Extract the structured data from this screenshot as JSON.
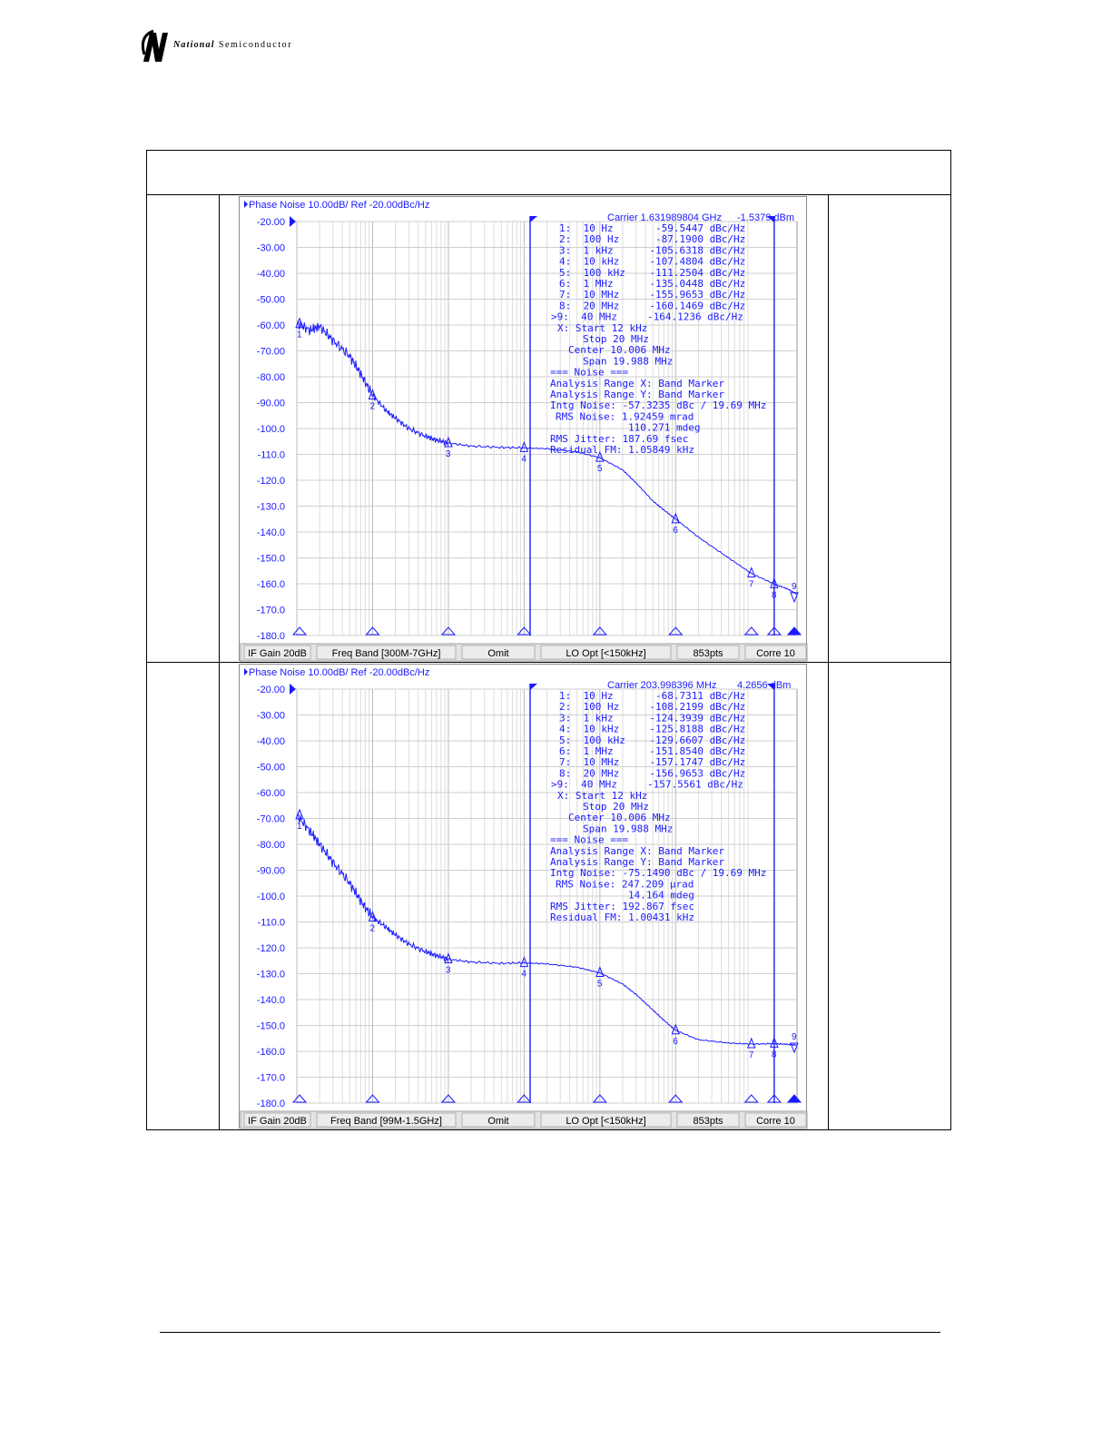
{
  "brand": {
    "name_bold": "National",
    "name_rest": "Semiconductor"
  },
  "chart_data": [
    {
      "type": "line",
      "title": "Phase Noise 10.00dB/ Ref -20.00dBc/Hz",
      "header_carrier": "Carrier 1.631989804 GHz",
      "header_power": "-1.5379 dBm",
      "x_scale": "log",
      "xlim": [
        10,
        40000000
      ],
      "ylim": [
        -180,
        -20
      ],
      "yticks": [
        "-20.00",
        "-30.00",
        "-40.00",
        "-50.00",
        "-60.00",
        "-70.00",
        "-80.00",
        "-90.00",
        "-100.0",
        "-110.0",
        "-120.0",
        "-130.0",
        "-140.0",
        "-150.0",
        "-160.0",
        "-170.0",
        "-180.0"
      ],
      "grid": true,
      "series": [
        {
          "x": [
            10,
            15,
            20,
            30,
            50,
            70,
            100,
            150,
            200,
            300,
            500,
            700,
            1000,
            2000,
            5000,
            10000,
            20000,
            50000,
            100000,
            200000,
            300000,
            500000,
            700000,
            1000000,
            2000000,
            5000000,
            10000000,
            20000000,
            30000000,
            40000000
          ],
          "y": [
            -59.5,
            -62,
            -60.5,
            -66,
            -72,
            -79,
            -87.2,
            -93,
            -96,
            -100,
            -103,
            -104.5,
            -105.6,
            -106.8,
            -107.3,
            -107.5,
            -107.8,
            -109,
            -111.3,
            -116,
            -121,
            -128,
            -131.5,
            -135,
            -142,
            -150,
            -156,
            -160.1,
            -162,
            -164.1
          ]
        }
      ],
      "markers": [
        {
          "id": "1",
          "x": 10,
          "y": -59.5447
        },
        {
          "id": "2",
          "x": 100,
          "y": -87.19
        },
        {
          "id": "3",
          "x": 1000,
          "y": -105.6318
        },
        {
          "id": "4",
          "x": 10000,
          "y": -107.4804
        },
        {
          "id": "5",
          "x": 100000,
          "y": -111.2504
        },
        {
          "id": "6",
          "x": 1000000,
          "y": -135.0448
        },
        {
          "id": "7",
          "x": 10000000,
          "y": -155.9653
        },
        {
          "id": "8",
          "x": 20000000,
          "y": -160.1469
        },
        {
          "id": "9",
          "x": 40000000,
          "y": -164.1236
        }
      ],
      "band_lines": [
        12000,
        20000000
      ],
      "marker_table": [
        "1:  10 Hz       -59.5447 dBc/Hz",
        "2:  100 Hz      -87.1900 dBc/Hz",
        "3:  1 kHz      -105.6318 dBc/Hz",
        "4:  10 kHz     -107.4804 dBc/Hz",
        "5:  100 kHz    -111.2504 dBc/Hz",
        "6:  1 MHz      -135.0448 dBc/Hz",
        "7:  10 MHz     -155.9653 dBc/Hz",
        "8:  20 MHz     -160.1469 dBc/Hz",
        ">9:  40 MHz     -164.1236 dBc/Hz",
        "X: Start 12 kHz",
        "Stop 20 MHz",
        "Center 10.006 MHz",
        "Span 19.988 MHz",
        "=== Noise ===",
        "Analysis Range X: Band Marker",
        "Analysis Range Y: Band Marker",
        "Intg Noise: -57.3235 dBc / 19.69 MHz",
        "RMS Noise: 1.92459 mrad",
        "110.271 mdeg",
        "RMS Jitter: 187.69 fsec",
        "Residual FM: 1.05849 kHz"
      ],
      "status_bar": [
        "IF Gain 20dB",
        "Freq Band [300M-7GHz]",
        "Omit",
        "LO Opt [<150kHz]",
        "853pts",
        "Corre 10"
      ]
    },
    {
      "type": "line",
      "title": "Phase Noise 10.00dB/ Ref -20.00dBc/Hz",
      "header_carrier": "Carrier 203.998396 MHz",
      "header_power": "4.2656 dBm",
      "x_scale": "log",
      "xlim": [
        10,
        40000000
      ],
      "ylim": [
        -180,
        -20
      ],
      "yticks": [
        "-20.00",
        "-30.00",
        "-40.00",
        "-50.00",
        "-60.00",
        "-70.00",
        "-80.00",
        "-90.00",
        "-100.0",
        "-110.0",
        "-120.0",
        "-130.0",
        "-140.0",
        "-150.0",
        "-160.0",
        "-170.0",
        "-180.0"
      ],
      "grid": true,
      "series": [
        {
          "x": [
            10,
            15,
            20,
            30,
            50,
            70,
            100,
            150,
            200,
            300,
            500,
            700,
            1000,
            2000,
            5000,
            10000,
            20000,
            50000,
            100000,
            200000,
            300000,
            500000,
            700000,
            1000000,
            2000000,
            5000000,
            10000000,
            20000000,
            30000000,
            40000000
          ],
          "y": [
            -68.7,
            -75,
            -80,
            -87,
            -95,
            -102,
            -108.2,
            -112,
            -115,
            -118.5,
            -121.5,
            -123,
            -124.4,
            -125.5,
            -126,
            -125.8,
            -126.2,
            -127.5,
            -129.7,
            -134,
            -138,
            -144,
            -148,
            -151.9,
            -155.5,
            -156.8,
            -157.2,
            -157,
            -157.3,
            -157.6
          ]
        }
      ],
      "markers": [
        {
          "id": "1",
          "x": 10,
          "y": -68.7311
        },
        {
          "id": "2",
          "x": 100,
          "y": -108.2199
        },
        {
          "id": "3",
          "x": 1000,
          "y": -124.3939
        },
        {
          "id": "4",
          "x": 10000,
          "y": -125.8188
        },
        {
          "id": "5",
          "x": 100000,
          "y": -129.6607
        },
        {
          "id": "6",
          "x": 1000000,
          "y": -151.854
        },
        {
          "id": "7",
          "x": 10000000,
          "y": -157.1747
        },
        {
          "id": "8",
          "x": 20000000,
          "y": -156.9653
        },
        {
          "id": "9",
          "x": 40000000,
          "y": -157.5561
        }
      ],
      "band_lines": [
        12000,
        20000000
      ],
      "marker_table": [
        "1:  10 Hz       -68.7311 dBc/Hz",
        "2:  100 Hz     -108.2199 dBc/Hz",
        "3:  1 kHz      -124.3939 dBc/Hz",
        "4:  10 kHz     -125.8188 dBc/Hz",
        "5:  100 kHz    -129.6607 dBc/Hz",
        "6:  1 MHz      -151.8540 dBc/Hz",
        "7:  10 MHz     -157.1747 dBc/Hz",
        "8:  20 MHz     -156.9653 dBc/Hz",
        ">9:  40 MHz     -157.5561 dBc/Hz",
        "X: Start 12 kHz",
        "Stop 20 MHz",
        "Center 10.006 MHz",
        "Span 19.988 MHz",
        "=== Noise ===",
        "Analysis Range X: Band Marker",
        "Analysis Range Y: Band Marker",
        "Intg Noise: -75.1490 dBc / 19.69 MHz",
        "RMS Noise: 247.209 µrad",
        "14.164 mdeg",
        "RMS Jitter: 192.867 fsec",
        "Residual FM: 1.00431 kHz"
      ],
      "status_bar": [
        "IF Gain 20dB",
        "Freq Band [99M-1.5GHz]",
        "Omit",
        "LO Opt [<150kHz]",
        "853pts",
        "Corre 10"
      ]
    }
  ]
}
